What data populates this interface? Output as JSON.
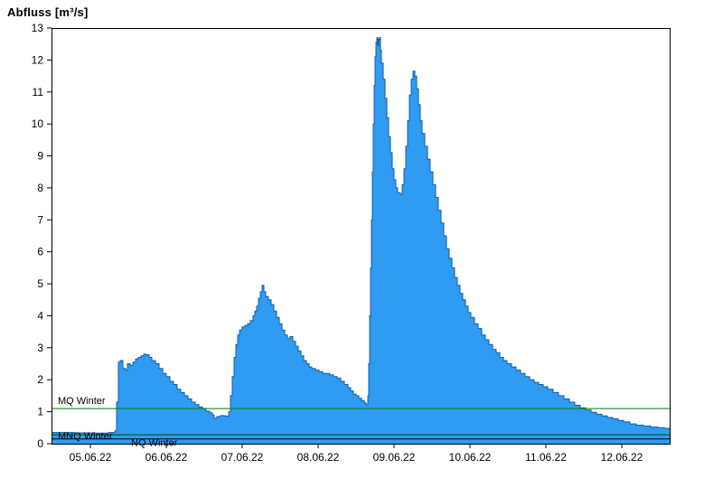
{
  "page": {
    "title": "Abfluss [m³/s]"
  },
  "chart_data": {
    "type": "area",
    "title": "Abfluss [m³/s]",
    "ylabel": "Abfluss [m³/s]",
    "xlabel": "",
    "ylim": [
      0,
      13
    ],
    "xlim": [
      0,
      8.143
    ],
    "grid": false,
    "legend_position": "none",
    "yticks": [
      0,
      1,
      2,
      3,
      4,
      5,
      6,
      7,
      8,
      9,
      10,
      11,
      12,
      13
    ],
    "xtick_labels": [
      "05.06.22",
      "06.06.22",
      "07.06.22",
      "08.06.22",
      "09.06.22",
      "10.06.22",
      "11.06.22",
      "12.06.22"
    ],
    "xtick_positions": [
      0.512,
      1.512,
      2.512,
      3.512,
      4.512,
      5.512,
      6.512,
      7.512
    ],
    "colors": {
      "area_fill": "#2F9BF2",
      "area_stroke": "#0F5CA8",
      "axis": "#000000",
      "text": "#000000"
    },
    "reference_lines": [
      {
        "label": "MQ Winter",
        "value": 1.1,
        "color": "#007F00"
      },
      {
        "label": "MNQ Winter",
        "value": 0.28,
        "color": "#005000"
      },
      {
        "label": "NQ Winter",
        "value": 0.15,
        "color": "#000000"
      }
    ],
    "series": [
      {
        "name": "Abfluss",
        "unit": "m³/s",
        "interpolation": "step-after",
        "points": [
          [
            0,
            0.35
          ],
          [
            0.3,
            0.34
          ],
          [
            0.55,
            0.33
          ],
          [
            0.75,
            0.35
          ],
          [
            0.833,
            0.4
          ],
          [
            0.857,
            1.3
          ],
          [
            0.881,
            2.55
          ],
          [
            0.905,
            2.6
          ],
          [
            0.94,
            2.35
          ],
          [
            0.976,
            2.3
          ],
          [
            1.0,
            2.5
          ],
          [
            1.036,
            2.45
          ],
          [
            1.071,
            2.55
          ],
          [
            1.107,
            2.65
          ],
          [
            1.143,
            2.7
          ],
          [
            1.179,
            2.75
          ],
          [
            1.214,
            2.8
          ],
          [
            1.25,
            2.78
          ],
          [
            1.286,
            2.7
          ],
          [
            1.321,
            2.6
          ],
          [
            1.369,
            2.5
          ],
          [
            1.417,
            2.35
          ],
          [
            1.464,
            2.2
          ],
          [
            1.512,
            2.1
          ],
          [
            1.56,
            1.95
          ],
          [
            1.607,
            1.85
          ],
          [
            1.655,
            1.7
          ],
          [
            1.702,
            1.6
          ],
          [
            1.75,
            1.5
          ],
          [
            1.798,
            1.4
          ],
          [
            1.845,
            1.3
          ],
          [
            1.893,
            1.22
          ],
          [
            1.94,
            1.15
          ],
          [
            1.988,
            1.1
          ],
          [
            2.036,
            1.02
          ],
          [
            2.083,
            0.97
          ],
          [
            2.119,
            0.9
          ],
          [
            2.143,
            0.8
          ],
          [
            2.179,
            0.85
          ],
          [
            2.226,
            0.88
          ],
          [
            2.274,
            0.87
          ],
          [
            2.31,
            0.85
          ],
          [
            2.333,
            1.0
          ],
          [
            2.357,
            1.5
          ],
          [
            2.381,
            2.1
          ],
          [
            2.405,
            2.7
          ],
          [
            2.429,
            3.1
          ],
          [
            2.452,
            3.4
          ],
          [
            2.476,
            3.55
          ],
          [
            2.512,
            3.65
          ],
          [
            2.548,
            3.7
          ],
          [
            2.583,
            3.75
          ],
          [
            2.619,
            3.85
          ],
          [
            2.655,
            4.0
          ],
          [
            2.679,
            4.15
          ],
          [
            2.702,
            4.3
          ],
          [
            2.726,
            4.55
          ],
          [
            2.75,
            4.75
          ],
          [
            2.774,
            4.95
          ],
          [
            2.798,
            4.75
          ],
          [
            2.821,
            4.6
          ],
          [
            2.857,
            4.5
          ],
          [
            2.893,
            4.35
          ],
          [
            2.929,
            4.15
          ],
          [
            2.964,
            3.95
          ],
          [
            3.0,
            3.75
          ],
          [
            3.036,
            3.55
          ],
          [
            3.071,
            3.4
          ],
          [
            3.107,
            3.3
          ],
          [
            3.143,
            3.35
          ],
          [
            3.179,
            3.2
          ],
          [
            3.214,
            3.05
          ],
          [
            3.25,
            2.9
          ],
          [
            3.286,
            2.75
          ],
          [
            3.321,
            2.6
          ],
          [
            3.357,
            2.5
          ],
          [
            3.393,
            2.4
          ],
          [
            3.429,
            2.35
          ],
          [
            3.476,
            2.3
          ],
          [
            3.524,
            2.25
          ],
          [
            3.571,
            2.2
          ],
          [
            3.619,
            2.2
          ],
          [
            3.667,
            2.15
          ],
          [
            3.714,
            2.1
          ],
          [
            3.762,
            2.05
          ],
          [
            3.81,
            1.95
          ],
          [
            3.857,
            1.85
          ],
          [
            3.905,
            1.75
          ],
          [
            3.94,
            1.65
          ],
          [
            3.976,
            1.55
          ],
          [
            4.012,
            1.5
          ],
          [
            4.048,
            1.42
          ],
          [
            4.083,
            1.35
          ],
          [
            4.119,
            1.28
          ],
          [
            4.143,
            1.22
          ],
          [
            4.167,
            1.5
          ],
          [
            4.179,
            2.5
          ],
          [
            4.19,
            4.0
          ],
          [
            4.202,
            5.5
          ],
          [
            4.214,
            7.0
          ],
          [
            4.226,
            8.5
          ],
          [
            4.238,
            10.0
          ],
          [
            4.25,
            11.2
          ],
          [
            4.262,
            12.1
          ],
          [
            4.274,
            12.55
          ],
          [
            4.286,
            12.7
          ],
          [
            4.298,
            12.45
          ],
          [
            4.31,
            12.65
          ],
          [
            4.321,
            12.7
          ],
          [
            4.333,
            12.3
          ],
          [
            4.345,
            11.9
          ],
          [
            4.369,
            11.4
          ],
          [
            4.393,
            10.8
          ],
          [
            4.417,
            10.2
          ],
          [
            4.44,
            9.6
          ],
          [
            4.464,
            9.1
          ],
          [
            4.488,
            8.6
          ],
          [
            4.512,
            8.25
          ],
          [
            4.536,
            8.0
          ],
          [
            4.56,
            7.85
          ],
          [
            4.595,
            7.8
          ],
          [
            4.619,
            8.1
          ],
          [
            4.643,
            8.6
          ],
          [
            4.667,
            9.3
          ],
          [
            4.69,
            10.1
          ],
          [
            4.714,
            10.9
          ],
          [
            4.738,
            11.4
          ],
          [
            4.762,
            11.65
          ],
          [
            4.786,
            11.5
          ],
          [
            4.81,
            11.1
          ],
          [
            4.833,
            10.6
          ],
          [
            4.857,
            10.1
          ],
          [
            4.881,
            9.7
          ],
          [
            4.917,
            9.3
          ],
          [
            4.952,
            8.9
          ],
          [
            4.988,
            8.5
          ],
          [
            5.024,
            8.1
          ],
          [
            5.06,
            7.7
          ],
          [
            5.095,
            7.3
          ],
          [
            5.131,
            6.9
          ],
          [
            5.167,
            6.5
          ],
          [
            5.202,
            6.1
          ],
          [
            5.238,
            5.8
          ],
          [
            5.274,
            5.5
          ],
          [
            5.31,
            5.2
          ],
          [
            5.345,
            4.95
          ],
          [
            5.381,
            4.7
          ],
          [
            5.417,
            4.5
          ],
          [
            5.452,
            4.3
          ],
          [
            5.488,
            4.1
          ],
          [
            5.524,
            3.95
          ],
          [
            5.571,
            3.75
          ],
          [
            5.619,
            3.6
          ],
          [
            5.667,
            3.4
          ],
          [
            5.714,
            3.25
          ],
          [
            5.762,
            3.1
          ],
          [
            5.81,
            2.95
          ],
          [
            5.857,
            2.85
          ],
          [
            5.905,
            2.7
          ],
          [
            5.952,
            2.6
          ],
          [
            6.0,
            2.5
          ],
          [
            6.06,
            2.4
          ],
          [
            6.119,
            2.3
          ],
          [
            6.179,
            2.2
          ],
          [
            6.238,
            2.1
          ],
          [
            6.298,
            2.0
          ],
          [
            6.357,
            1.92
          ],
          [
            6.417,
            1.85
          ],
          [
            6.476,
            1.78
          ],
          [
            6.536,
            1.7
          ],
          [
            6.607,
            1.6
          ],
          [
            6.679,
            1.5
          ],
          [
            6.75,
            1.4
          ],
          [
            6.821,
            1.3
          ],
          [
            6.893,
            1.2
          ],
          [
            6.964,
            1.12
          ],
          [
            7.036,
            1.05
          ],
          [
            7.107,
            0.98
          ],
          [
            7.179,
            0.92
          ],
          [
            7.25,
            0.87
          ],
          [
            7.321,
            0.82
          ],
          [
            7.393,
            0.78
          ],
          [
            7.464,
            0.73
          ],
          [
            7.536,
            0.68
          ],
          [
            7.619,
            0.62
          ],
          [
            7.702,
            0.58
          ],
          [
            7.798,
            0.55
          ],
          [
            7.893,
            0.52
          ],
          [
            7.988,
            0.5
          ],
          [
            8.071,
            0.48
          ],
          [
            8.143,
            0.46
          ]
        ]
      }
    ]
  }
}
